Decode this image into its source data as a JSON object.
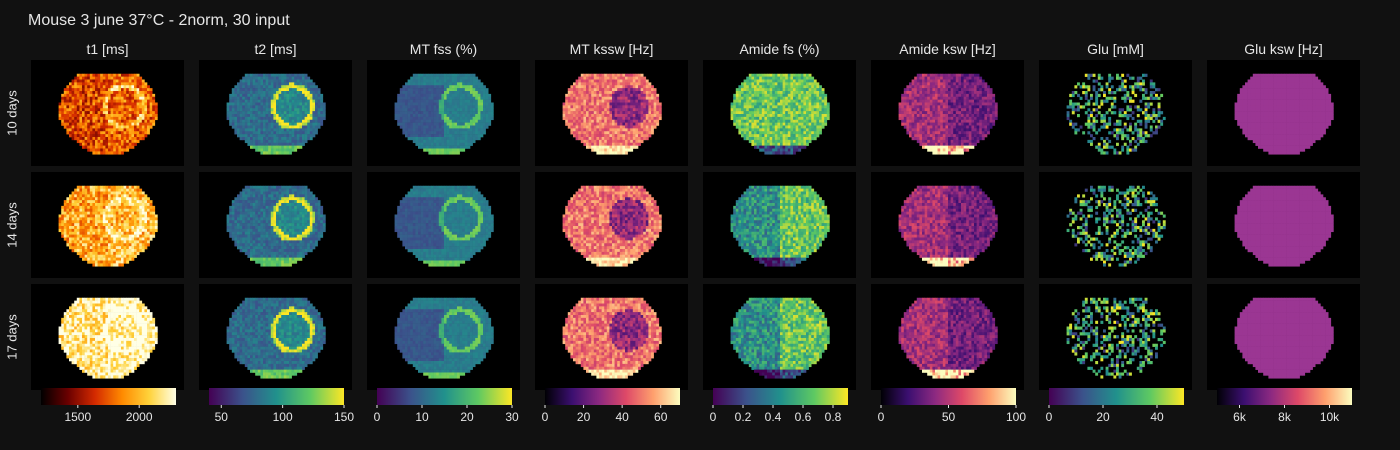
{
  "title": "Mouse 3 june 37°C - 2norm, 30 input",
  "colors": {
    "background": "#111111",
    "panel_background": "#000000",
    "text": "#e6e6e6"
  },
  "chart_data": {
    "type": "heatmap",
    "title": "Mouse 3 june 37°C - 2norm, 30 input",
    "rows": [
      "10 days",
      "14 days",
      "17 days"
    ],
    "columns": [
      {
        "title": "t1 [ms]",
        "colormap": "hot",
        "range": [
          1200,
          2300
        ],
        "colorbar_ticks": [
          {
            "value": 1500,
            "label": "1500"
          },
          {
            "value": 2000,
            "label": "2000"
          }
        ],
        "pattern": "hot"
      },
      {
        "title": "t2 [ms]",
        "colormap": "viridis",
        "range": [
          40,
          150
        ],
        "colorbar_ticks": [
          {
            "value": 50,
            "label": "50"
          },
          {
            "value": 100,
            "label": "100"
          },
          {
            "value": 150,
            "label": "150"
          }
        ],
        "pattern": "t2"
      },
      {
        "title": "MT fss (%)",
        "colormap": "viridis",
        "range": [
          0,
          30
        ],
        "colorbar_ticks": [
          {
            "value": 0,
            "label": "0"
          },
          {
            "value": 10,
            "label": "10"
          },
          {
            "value": 20,
            "label": "20"
          },
          {
            "value": 30,
            "label": "30"
          }
        ],
        "pattern": "smooth"
      },
      {
        "title": "MT kssw [Hz]",
        "colormap": "magma",
        "range": [
          0,
          70
        ],
        "colorbar_ticks": [
          {
            "value": 0,
            "label": "0"
          },
          {
            "value": 20,
            "label": "20"
          },
          {
            "value": 40,
            "label": "40"
          },
          {
            "value": 60,
            "label": "60"
          }
        ],
        "pattern": "mtk"
      },
      {
        "title": "Amide fs (%)",
        "colormap": "viridis",
        "range": [
          0,
          0.9
        ],
        "colorbar_ticks": [
          {
            "value": 0,
            "label": "0"
          },
          {
            "value": 0.2,
            "label": "0.2"
          },
          {
            "value": 0.4,
            "label": "0.4"
          },
          {
            "value": 0.6,
            "label": "0.6"
          },
          {
            "value": 0.8,
            "label": "0.8"
          }
        ],
        "pattern": "amide"
      },
      {
        "title": "Amide ksw [Hz]",
        "colormap": "magma",
        "range": [
          0,
          100
        ],
        "colorbar_ticks": [
          {
            "value": 0,
            "label": "0"
          },
          {
            "value": 50,
            "label": "50"
          },
          {
            "value": 100,
            "label": "100"
          }
        ],
        "pattern": "amidek"
      },
      {
        "title": "Glu [mM]",
        "colormap": "viridis",
        "range": [
          0,
          50
        ],
        "colorbar_ticks": [
          {
            "value": 0,
            "label": "0"
          },
          {
            "value": 20,
            "label": "20"
          },
          {
            "value": 40,
            "label": "40"
          }
        ],
        "pattern": "glu"
      },
      {
        "title": "Glu ksw [Hz]",
        "colormap": "magma",
        "range": [
          5000,
          11000
        ],
        "colorbar_ticks": [
          {
            "value": 6000,
            "label": "6k"
          },
          {
            "value": 8000,
            "label": "8k"
          },
          {
            "value": 10000,
            "label": "10k"
          }
        ],
        "pattern": "flat"
      }
    ]
  }
}
